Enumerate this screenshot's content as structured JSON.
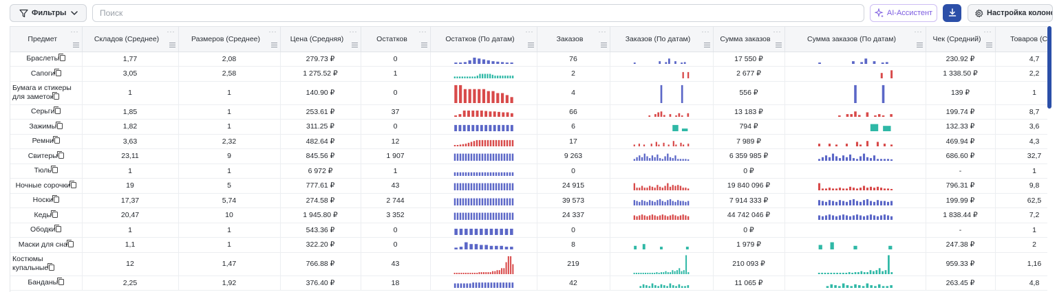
{
  "toolbar": {
    "filter_label": "Фильтры",
    "search_placeholder": "Поиск",
    "ai_label": "AI-Ассистент",
    "columns_label": "Настройка колонок"
  },
  "colors": {
    "accent": "#2c4fa8",
    "ai": "#7c5ce0",
    "spark_blue": "#5b67c7",
    "spark_red": "#d84a4a",
    "spark_teal": "#2fb8a6"
  },
  "columns": [
    "Предмет",
    "Складов (Среднее)",
    "Размеров (Среднее)",
    "Цена (Средняя)",
    "Остатков",
    "Остатков (По датам)",
    "Заказов",
    "Заказов (По датам)",
    "Сумма заказов",
    "Сумма заказов (По датам)",
    "Чек (Средний)",
    "Товаров (Ср"
  ],
  "rows": [
    {
      "name": "Браслеты",
      "warehouses": "1,77",
      "sizes": "2,08",
      "price": "279.73 ₽",
      "stock": "0",
      "orders": "76",
      "orders_sum": "17 550 ₽",
      "avg_check": "230.92 ₽",
      "goods": "4,7",
      "spark_stock": {
        "color": "blue",
        "values": [
          0.1,
          0.15,
          0.2,
          0.4,
          0.7,
          0.6,
          0.5,
          0.4,
          0.3,
          0.25,
          0.2,
          0.15,
          0.1
        ]
      },
      "spark_orders": {
        "color": "blue",
        "values": [
          0.1,
          0,
          0,
          0,
          0,
          0,
          0,
          0,
          0.3,
          0,
          0.2,
          0.6,
          0,
          0.3,
          0,
          0.1,
          0.2,
          0
        ]
      },
      "spark_sum": {
        "color": "blue",
        "values": [
          0.1,
          0,
          0,
          0,
          0,
          0,
          0,
          0,
          0.3,
          0,
          0.2,
          0.6,
          0,
          0.3,
          0,
          0.1,
          0.2,
          0
        ]
      }
    },
    {
      "name": "Сапоги",
      "warehouses": "3,05",
      "sizes": "2,58",
      "price": "1 275.52 ₽",
      "stock": "1",
      "orders": "2",
      "orders_sum": "2 677 ₽",
      "avg_check": "1 338.50 ₽",
      "goods": "2,2",
      "spark_stock": {
        "color": "teal",
        "values": [
          0.2,
          0.2,
          0.2,
          0.2,
          0.2,
          0.2,
          0.2,
          0.2,
          0.2,
          0.3,
          0.5,
          0.5,
          0.5,
          0.5,
          0.5,
          0.4,
          0.3,
          0.3,
          0.3,
          0.3,
          0.3,
          0.3,
          0.3,
          0.3
        ]
      },
      "spark_orders": {
        "color": "red",
        "values": [
          0,
          0,
          0,
          0,
          0,
          0,
          0,
          0,
          0,
          0,
          0,
          0,
          0,
          0,
          0,
          0,
          0,
          0,
          0,
          0.7,
          0,
          0.7
        ]
      },
      "spark_sum": {
        "color": "red",
        "values": [
          0,
          0,
          0,
          0,
          0,
          0,
          0,
          0,
          0,
          0,
          0,
          0,
          0,
          0,
          0,
          0,
          0,
          0,
          0,
          0.6,
          0,
          0,
          0.9
        ]
      }
    },
    {
      "name": "Бумага и стикеры для заметок",
      "warehouses": "1",
      "sizes": "1",
      "price": "140.90 ₽",
      "stock": "0",
      "orders": "4",
      "orders_sum": "556 ₽",
      "avg_check": "139 ₽",
      "goods": "1",
      "spark_stock": {
        "color": "red",
        "values": [
          0.9,
          0.9,
          0.7,
          0.7,
          0.7,
          0.7,
          0.7,
          0.6,
          0.6,
          0.5,
          0.5,
          0.4,
          0.3
        ]
      },
      "spark_orders": {
        "color": "blue",
        "values": [
          0,
          0,
          0,
          0,
          0,
          0,
          0,
          0,
          0,
          0.9,
          0,
          0,
          0,
          0,
          0,
          0,
          0.9,
          0,
          0
        ]
      },
      "spark_sum": {
        "color": "blue",
        "values": [
          0,
          0,
          0,
          0,
          0,
          0,
          0,
          0,
          0,
          0.9,
          0,
          0,
          0,
          0,
          0,
          0,
          0.9,
          0,
          0
        ]
      }
    },
    {
      "name": "Серьги",
      "warehouses": "1,85",
      "sizes": "1",
      "price": "253.61 ₽",
      "stock": "37",
      "orders": "66",
      "orders_sum": "13 183 ₽",
      "avg_check": "199.74 ₽",
      "goods": "8,7",
      "spark_stock": {
        "color": "red",
        "values": [
          0.15,
          0.3,
          0.7,
          0.7,
          0.7,
          0.7,
          0.7,
          0.65,
          0.6,
          0.6,
          0.55,
          0.5,
          0.5,
          0.4
        ]
      },
      "spark_orders": {
        "color": "red",
        "values": [
          0,
          0,
          0,
          0,
          0,
          0.1,
          0,
          0.3,
          0.5,
          0.6,
          0.2,
          0,
          0.3,
          0,
          0.1,
          0.4,
          0.1,
          0,
          0.4
        ]
      },
      "spark_sum": {
        "color": "red",
        "values": [
          0,
          0,
          0,
          0,
          0,
          0.1,
          0,
          0.3,
          0.3,
          0.6,
          0.2,
          0,
          0.5,
          0,
          0.1,
          0.3,
          0.1,
          0,
          0.3
        ]
      }
    },
    {
      "name": "Зажимы",
      "warehouses": "1,82",
      "sizes": "1",
      "price": "311.25 ₽",
      "stock": "0",
      "orders": "6",
      "orders_sum": "794 ₽",
      "avg_check": "132.33 ₽",
      "goods": "3,6",
      "spark_stock": {
        "color": "blue",
        "values": [
          0.7,
          0.7,
          0.7,
          0.7,
          0.7,
          0.7,
          0.7,
          0.7,
          0.7,
          0.7,
          0.7,
          0.7,
          0.7,
          0.7
        ]
      },
      "spark_orders": {
        "color": "teal",
        "values": [
          0,
          0,
          0,
          0,
          0.7,
          0.3
        ]
      },
      "spark_sum": {
        "color": "teal",
        "values": [
          0,
          0,
          0,
          0,
          0.8,
          0.6
        ]
      }
    },
    {
      "name": "Ремни",
      "warehouses": "3,63",
      "sizes": "2,32",
      "price": "482.64 ₽",
      "stock": "12",
      "orders": "17",
      "orders_sum": "7 989 ₽",
      "avg_check": "469.94 ₽",
      "goods": "4,3",
      "spark_stock": {
        "color": "red",
        "values": [
          0.15,
          0.15,
          0.2,
          0.25,
          0.3,
          0.4,
          0.5,
          0.6,
          0.7,
          0.7,
          0.7,
          0.7,
          0.7,
          0.7,
          0.7,
          0.7,
          0.7,
          0.7,
          0.7,
          0.7,
          0.7,
          0.7
        ]
      },
      "spark_orders": {
        "color": "red",
        "values": [
          0.2,
          0,
          0.3,
          0,
          0.2,
          0,
          0,
          0.3,
          0,
          0.5,
          0.2,
          0,
          0.4,
          0,
          0.2,
          0,
          0.6,
          0.2,
          0,
          0.4,
          0.2,
          0,
          0.3
        ]
      },
      "spark_sum": {
        "color": "red",
        "values": [
          0.3,
          0,
          0,
          0.3,
          0,
          0.2,
          0,
          0,
          0.3,
          0,
          0,
          0.5,
          0.2,
          0,
          0.6,
          0,
          0,
          0.5,
          0,
          0.3,
          0,
          0.2
        ]
      }
    },
    {
      "name": "Свитеры",
      "warehouses": "23,11",
      "sizes": "9",
      "price": "845.56 ₽",
      "stock": "1 907",
      "orders": "9 263",
      "orders_sum": "6 359 985 ₽",
      "avg_check": "686.60 ₽",
      "goods": "32,7",
      "spark_stock": {
        "color": "blue",
        "values": [
          0.8,
          0.8,
          0.8,
          0.8,
          0.8,
          0.8,
          0.8,
          0.8,
          0.8,
          0.8,
          0.8,
          0.8,
          0.8,
          0.8,
          0.8,
          0.8,
          0.8,
          0.8,
          0.8,
          0.8,
          0.8,
          0.8
        ]
      },
      "spark_orders": {
        "color": "blue",
        "values": [
          0.2,
          0.4,
          0.6,
          0.4,
          0.8,
          0.5,
          0.3,
          0.6,
          0.4,
          0.7,
          0.3,
          0.2,
          0.5,
          0.8,
          0.4,
          0.3,
          0.6,
          0.2,
          0.2,
          0.2,
          0.2,
          0.1
        ]
      },
      "spark_sum": {
        "color": "blue",
        "values": [
          0.2,
          0.4,
          0.6,
          0.4,
          0.8,
          0.5,
          0.3,
          0.6,
          0.4,
          0.7,
          0.3,
          0.2,
          0.5,
          0.8,
          0.4,
          0.3,
          0.6,
          0.2,
          0.2,
          0.2,
          0.2,
          0.1
        ]
      }
    },
    {
      "name": "Тюль",
      "warehouses": "1",
      "sizes": "1",
      "price": "6 972 ₽",
      "stock": "1",
      "orders": "0",
      "orders_sum": "0 ₽",
      "avg_check": "-",
      "goods": "1",
      "spark_stock": {
        "color": "blue",
        "values": [
          0.4,
          0.4,
          0.4,
          0.4,
          0.4,
          0.4,
          0.4,
          0.4,
          0.4,
          0.4,
          0.4,
          0.4,
          0.4,
          0.4,
          0.4,
          0.4,
          0.4,
          0.4,
          0.4,
          0.4,
          0.4,
          0.4
        ]
      },
      "spark_orders": {
        "color": "blue",
        "values": []
      },
      "spark_sum": {
        "color": "blue",
        "values": []
      }
    },
    {
      "name": "Ночные сорочки",
      "warehouses": "19",
      "sizes": "5",
      "price": "777.61 ₽",
      "stock": "43",
      "orders": "24 915",
      "orders_sum": "19 840 096 ₽",
      "avg_check": "796.31 ₽",
      "goods": "9,8",
      "spark_stock": {
        "color": "blue",
        "values": [
          0.8,
          0.8,
          0.8,
          0.8,
          0.8,
          0.8,
          0.8,
          0.8,
          0.8,
          0.8,
          0.8,
          0.8,
          0.8,
          0.8,
          0.8,
          0.8,
          0.8,
          0.8,
          0.8,
          0.8,
          0.8,
          0.8
        ]
      },
      "spark_orders": {
        "color": "red",
        "values": [
          0.8,
          0.3,
          0.3,
          0.5,
          0.3,
          0.3,
          0.5,
          0.4,
          0.3,
          0.6,
          0.4,
          0.3,
          0.5,
          0.8,
          0.4,
          0.6,
          0.5,
          0.6,
          0.5,
          0.3,
          0.3,
          0.2
        ]
      },
      "spark_sum": {
        "color": "red",
        "values": [
          0.8,
          0.2,
          0.2,
          0.3,
          0.2,
          0.2,
          0.3,
          0.2,
          0.2,
          0.4,
          0.3,
          0.2,
          0.3,
          0.5,
          0.3,
          0.4,
          0.3,
          0.4,
          0.3,
          0.2,
          0.2,
          0.1
        ]
      }
    },
    {
      "name": "Носки",
      "warehouses": "17,37",
      "sizes": "5,74",
      "price": "274.58 ₽",
      "stock": "2 744",
      "orders": "39 573",
      "orders_sum": "7 914 333 ₽",
      "avg_check": "199.99 ₽",
      "goods": "62,5",
      "spark_stock": {
        "color": "blue",
        "values": [
          0.8,
          0.8,
          0.8,
          0.8,
          0.8,
          0.8,
          0.8,
          0.8,
          0.8,
          0.8,
          0.8,
          0.8,
          0.8,
          0.8,
          0.8,
          0.8,
          0.8,
          0.8,
          0.8,
          0.8,
          0.8,
          0.8
        ]
      },
      "spark_orders": {
        "color": "blue",
        "values": [
          0.6,
          0.5,
          0.4,
          0.6,
          0.5,
          0.4,
          0.6,
          0.5,
          0.4,
          0.6,
          0.7,
          0.5,
          0.4,
          0.6,
          0.7,
          0.5,
          0.4,
          0.6,
          0.5,
          0.5,
          0.4,
          0.5
        ]
      },
      "spark_sum": {
        "color": "blue",
        "values": [
          0.6,
          0.5,
          0.4,
          0.6,
          0.5,
          0.4,
          0.6,
          0.5,
          0.4,
          0.6,
          0.7,
          0.5,
          0.4,
          0.6,
          0.7,
          0.5,
          0.4,
          0.6,
          0.5,
          0.5,
          0.4,
          0.5
        ]
      }
    },
    {
      "name": "Кеды",
      "warehouses": "20,47",
      "sizes": "10",
      "price": "1 945.80 ₽",
      "stock": "3 352",
      "orders": "24 337",
      "orders_sum": "44 742 046 ₽",
      "avg_check": "1 838.44 ₽",
      "goods": "7,2",
      "spark_stock": {
        "color": "blue",
        "values": [
          0.8,
          0.8,
          0.8,
          0.8,
          0.8,
          0.8,
          0.8,
          0.8,
          0.8,
          0.8,
          0.8,
          0.8,
          0.8,
          0.8,
          0.8,
          0.8,
          0.8,
          0.8,
          0.8,
          0.8,
          0.8,
          0.8
        ]
      },
      "spark_orders": {
        "color": "red",
        "values": [
          0.5,
          0.4,
          0.5,
          0.6,
          0.5,
          0.4,
          0.5,
          0.6,
          0.5,
          0.4,
          0.5,
          0.6,
          0.5,
          0.4,
          0.5,
          0.6,
          0.5,
          0.4,
          0.5,
          0.6,
          0.5,
          0.4
        ]
      },
      "spark_sum": {
        "color": "blue",
        "values": [
          0.5,
          0.4,
          0.5,
          0.6,
          0.5,
          0.4,
          0.5,
          0.6,
          0.5,
          0.4,
          0.5,
          0.6,
          0.5,
          0.4,
          0.5,
          0.6,
          0.5,
          0.4,
          0.5,
          0.6,
          0.5,
          0.4
        ]
      }
    },
    {
      "name": "Ободки",
      "warehouses": "1",
      "sizes": "1",
      "price": "543.36 ₽",
      "stock": "0",
      "orders": "0",
      "orders_sum": "0 ₽",
      "avg_check": "-",
      "goods": "1",
      "spark_stock": {
        "color": "blue",
        "values": [
          0.7,
          0.7,
          0.7,
          0.7,
          0.7,
          0.7,
          0.7,
          0.7,
          0.7,
          0.7,
          0.7,
          0.7
        ]
      },
      "spark_orders": {
        "color": "blue",
        "values": []
      },
      "spark_sum": {
        "color": "blue",
        "values": []
      }
    },
    {
      "name": "Маски для сна",
      "warehouses": "1,1",
      "sizes": "1",
      "price": "322.20 ₽",
      "stock": "0",
      "orders": "8",
      "orders_sum": "1 979 ₽",
      "avg_check": "247.38 ₽",
      "goods": "2",
      "spark_stock": {
        "color": "blue",
        "values": [
          0.2,
          0.3,
          0.8,
          0.6,
          0.6,
          0.5,
          0.5,
          0.4,
          0.4,
          0.4,
          0.3,
          0.3
        ]
      },
      "spark_orders": {
        "color": "teal",
        "values": [
          0.4,
          0,
          0.6,
          0,
          0,
          0,
          0.3,
          0,
          0,
          0,
          0,
          0,
          0.3
        ]
      },
      "spark_sum": {
        "color": "teal",
        "values": [
          0.5,
          0,
          0.8,
          0,
          0,
          0,
          0.4,
          0,
          0,
          0,
          0,
          0,
          0.4
        ]
      }
    },
    {
      "name": "Костюмы купальные",
      "warehouses": "12",
      "sizes": "1,47",
      "price": "766.88 ₽",
      "stock": "43",
      "orders": "219",
      "orders_sum": "210 093 ₽",
      "avg_check": "959.33 ₽",
      "goods": "1,16",
      "spark_stock": {
        "color": "red",
        "values": [
          0.05,
          0.05,
          0.05,
          0.05,
          0.05,
          0.05,
          0.05,
          0.05,
          0.05,
          0.05,
          0.05,
          0.1,
          0.1,
          0.1,
          0.1,
          0.1,
          0.1,
          0.15,
          0.15,
          0.2,
          0.2,
          0.3,
          0.3,
          0.6,
          0.9,
          0.9,
          0.5
        ]
      },
      "spark_orders": {
        "color": "teal",
        "values": [
          0.05,
          0.05,
          0.05,
          0.05,
          0.05,
          0.05,
          0.05,
          0.05,
          0.05,
          0.05,
          0.1,
          0.05,
          0.1,
          0.1,
          0.15,
          0.1,
          0.1,
          0.2,
          0.15,
          0.2,
          0.3,
          0.15,
          0.2,
          0.95,
          0.1
        ]
      },
      "spark_sum": {
        "color": "teal",
        "values": [
          0.05,
          0.05,
          0.05,
          0.05,
          0.05,
          0.05,
          0.05,
          0.05,
          0.05,
          0.05,
          0.1,
          0.05,
          0.1,
          0.1,
          0.15,
          0.1,
          0.1,
          0.2,
          0.15,
          0.2,
          0.3,
          0.15,
          0.2,
          0.95,
          0.1
        ]
      }
    },
    {
      "name": "Банданы",
      "warehouses": "2,25",
      "sizes": "1,92",
      "price": "376.40 ₽",
      "stock": "18",
      "orders": "42",
      "orders_sum": "11 065 ₽",
      "avg_check": "263.45 ₽",
      "goods": "4,8",
      "spark_stock": {
        "color": "blue",
        "values": [
          0.5,
          0.5,
          0.5,
          0.5,
          0.5,
          0.5,
          0.6,
          0.6,
          0.6,
          0.6,
          0.6,
          0.6,
          0.6,
          0.6,
          0.6,
          0.6,
          0.6,
          0.6,
          0.6,
          0.6
        ]
      },
      "spark_orders": {
        "color": "teal",
        "values": [
          0,
          0,
          0.2,
          0.4,
          0.3,
          0.2,
          0.5,
          0.3,
          0.2,
          0.4,
          0.3,
          0.2,
          0.5,
          0.3,
          0.2,
          0.4,
          0.2,
          0.2,
          0.3
        ]
      },
      "spark_sum": {
        "color": "teal",
        "values": [
          0,
          0,
          0.2,
          0.4,
          0.3,
          0.2,
          0.5,
          0.3,
          0.2,
          0.4,
          0.3,
          0.2,
          0.5,
          0.3,
          0.2,
          0.4,
          0.2,
          0.2,
          0.3
        ]
      }
    }
  ]
}
